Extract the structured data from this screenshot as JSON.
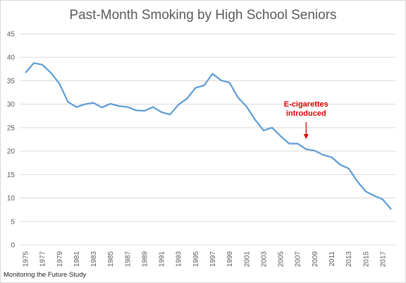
{
  "chart_data": {
    "type": "line",
    "title": "Past-Month Smoking by High School Seniors",
    "source": "Monitoring the Future Study",
    "xlabel": "",
    "ylabel": "",
    "ylim": [
      0,
      45
    ],
    "yticks": [
      0,
      5,
      10,
      15,
      20,
      25,
      30,
      35,
      40,
      45
    ],
    "xtick_labels": [
      "1975",
      "1977",
      "1979",
      "1981",
      "1983",
      "1985",
      "1987",
      "1989",
      "1991",
      "1993",
      "1995",
      "1997",
      "1999",
      "2001",
      "2003",
      "2005",
      "2007",
      "2009",
      "2011",
      "2013",
      "2015",
      "2017"
    ],
    "grid": true,
    "line_color": "#5b9bd5",
    "series": [
      {
        "x": [
          1975,
          1976,
          1977,
          1978,
          1979,
          1980,
          1981,
          1982,
          1983,
          1984,
          1985,
          1986,
          1987,
          1988,
          1989,
          1990,
          1991,
          1992,
          1993,
          1994,
          1995,
          1996,
          1997,
          1998,
          1999,
          2000,
          2001,
          2002,
          2003,
          2004,
          2005,
          2006,
          2007,
          2008,
          2009,
          2010,
          2011,
          2012,
          2013,
          2014,
          2015,
          2016,
          2017,
          2018
        ],
        "values": [
          36.7,
          38.8,
          38.4,
          36.7,
          34.4,
          30.5,
          29.4,
          30.0,
          30.3,
          29.3,
          30.1,
          29.6,
          29.4,
          28.7,
          28.6,
          29.4,
          28.3,
          27.8,
          29.9,
          31.2,
          33.5,
          34.0,
          36.5,
          35.1,
          34.6,
          31.4,
          29.5,
          26.7,
          24.4,
          25.0,
          23.2,
          21.6,
          21.6,
          20.4,
          20.1,
          19.2,
          18.7,
          17.1,
          16.3,
          13.6,
          11.4,
          10.5,
          9.7,
          7.6
        ]
      }
    ],
    "annotation": {
      "lines": [
        "E-cigarettes",
        "introduced"
      ],
      "x": 2008,
      "color": "#e00000"
    }
  }
}
